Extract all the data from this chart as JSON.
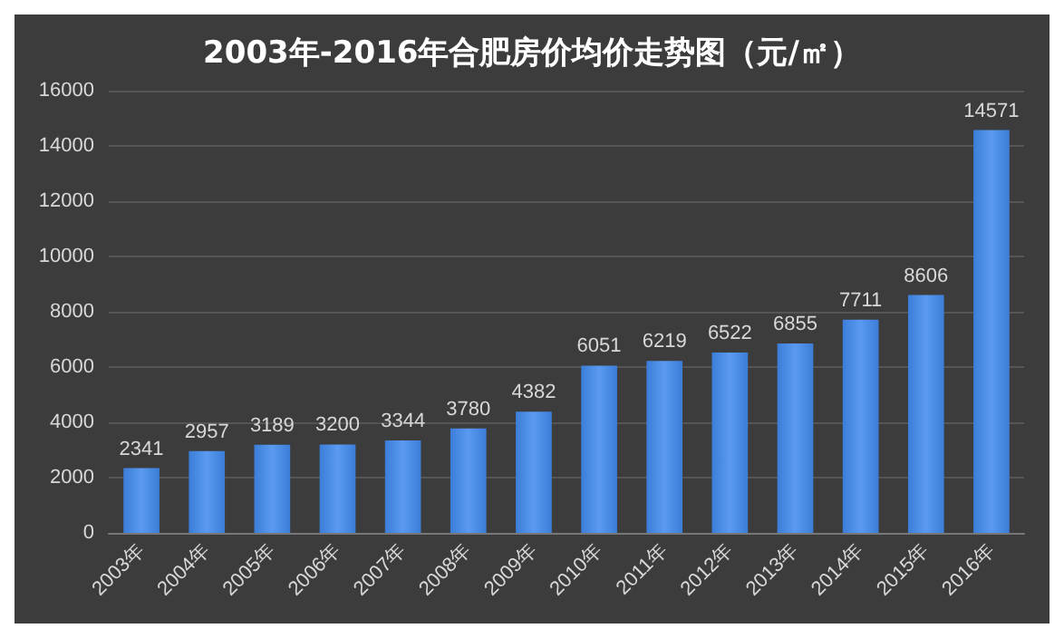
{
  "chart_data": {
    "type": "bar",
    "title": "2003年-2016年合肥房价均价走势图（元/㎡）",
    "categories": [
      "2003年",
      "2004年",
      "2005年",
      "2006年",
      "2007年",
      "2008年",
      "2009年",
      "2010年",
      "2011年",
      "2012年",
      "2013年",
      "2014年",
      "2015年",
      "2016年"
    ],
    "values": [
      2341,
      2957,
      3189,
      3200,
      3344,
      3780,
      4382,
      6051,
      6219,
      6522,
      6855,
      7711,
      8606,
      14571
    ],
    "color": "#3b7dd8",
    "ylim": [
      0,
      16000
    ],
    "yticks": [
      0,
      2000,
      4000,
      6000,
      8000,
      10000,
      12000,
      14000,
      16000
    ],
    "grid": "y",
    "data_labels": true
  }
}
